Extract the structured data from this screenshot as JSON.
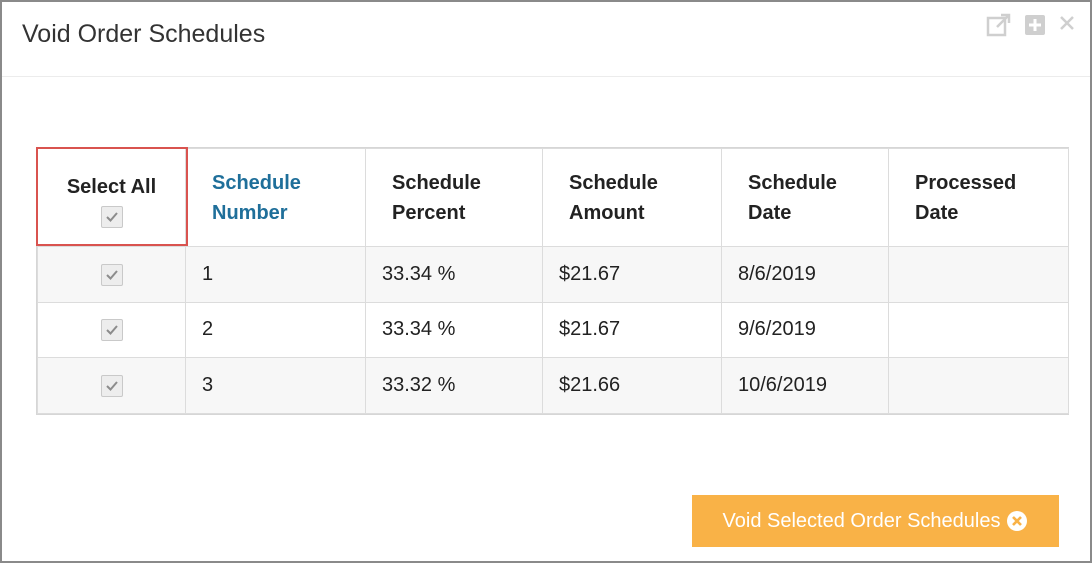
{
  "dialog": {
    "title": "Void Order Schedules",
    "icons": [
      "popout-icon",
      "expand-icon",
      "close-icon"
    ]
  },
  "table": {
    "headers": {
      "select_all": "Select All",
      "schedule_number": [
        "Schedule",
        "Number"
      ],
      "schedule_percent": [
        "Schedule",
        "Percent"
      ],
      "schedule_amount": [
        "Schedule",
        "Amount"
      ],
      "schedule_date": [
        "Schedule",
        "Date"
      ],
      "processed_date": [
        "Processed",
        "Date"
      ]
    },
    "select_all_checked": true,
    "rows": [
      {
        "checked": true,
        "number": "1",
        "percent": "33.34 %",
        "amount": "$21.67",
        "date": "8/6/2019",
        "processed": ""
      },
      {
        "checked": true,
        "number": "2",
        "percent": "33.34 %",
        "amount": "$21.67",
        "date": "9/6/2019",
        "processed": ""
      },
      {
        "checked": true,
        "number": "3",
        "percent": "33.32 %",
        "amount": "$21.66",
        "date": "10/6/2019",
        "processed": ""
      }
    ]
  },
  "footer": {
    "void_button_label": "Void Selected Order Schedules"
  },
  "colors": {
    "accent_button": "#f9b247",
    "link_header": "#1f6f9a",
    "select_all_highlight": "#d9534f"
  }
}
